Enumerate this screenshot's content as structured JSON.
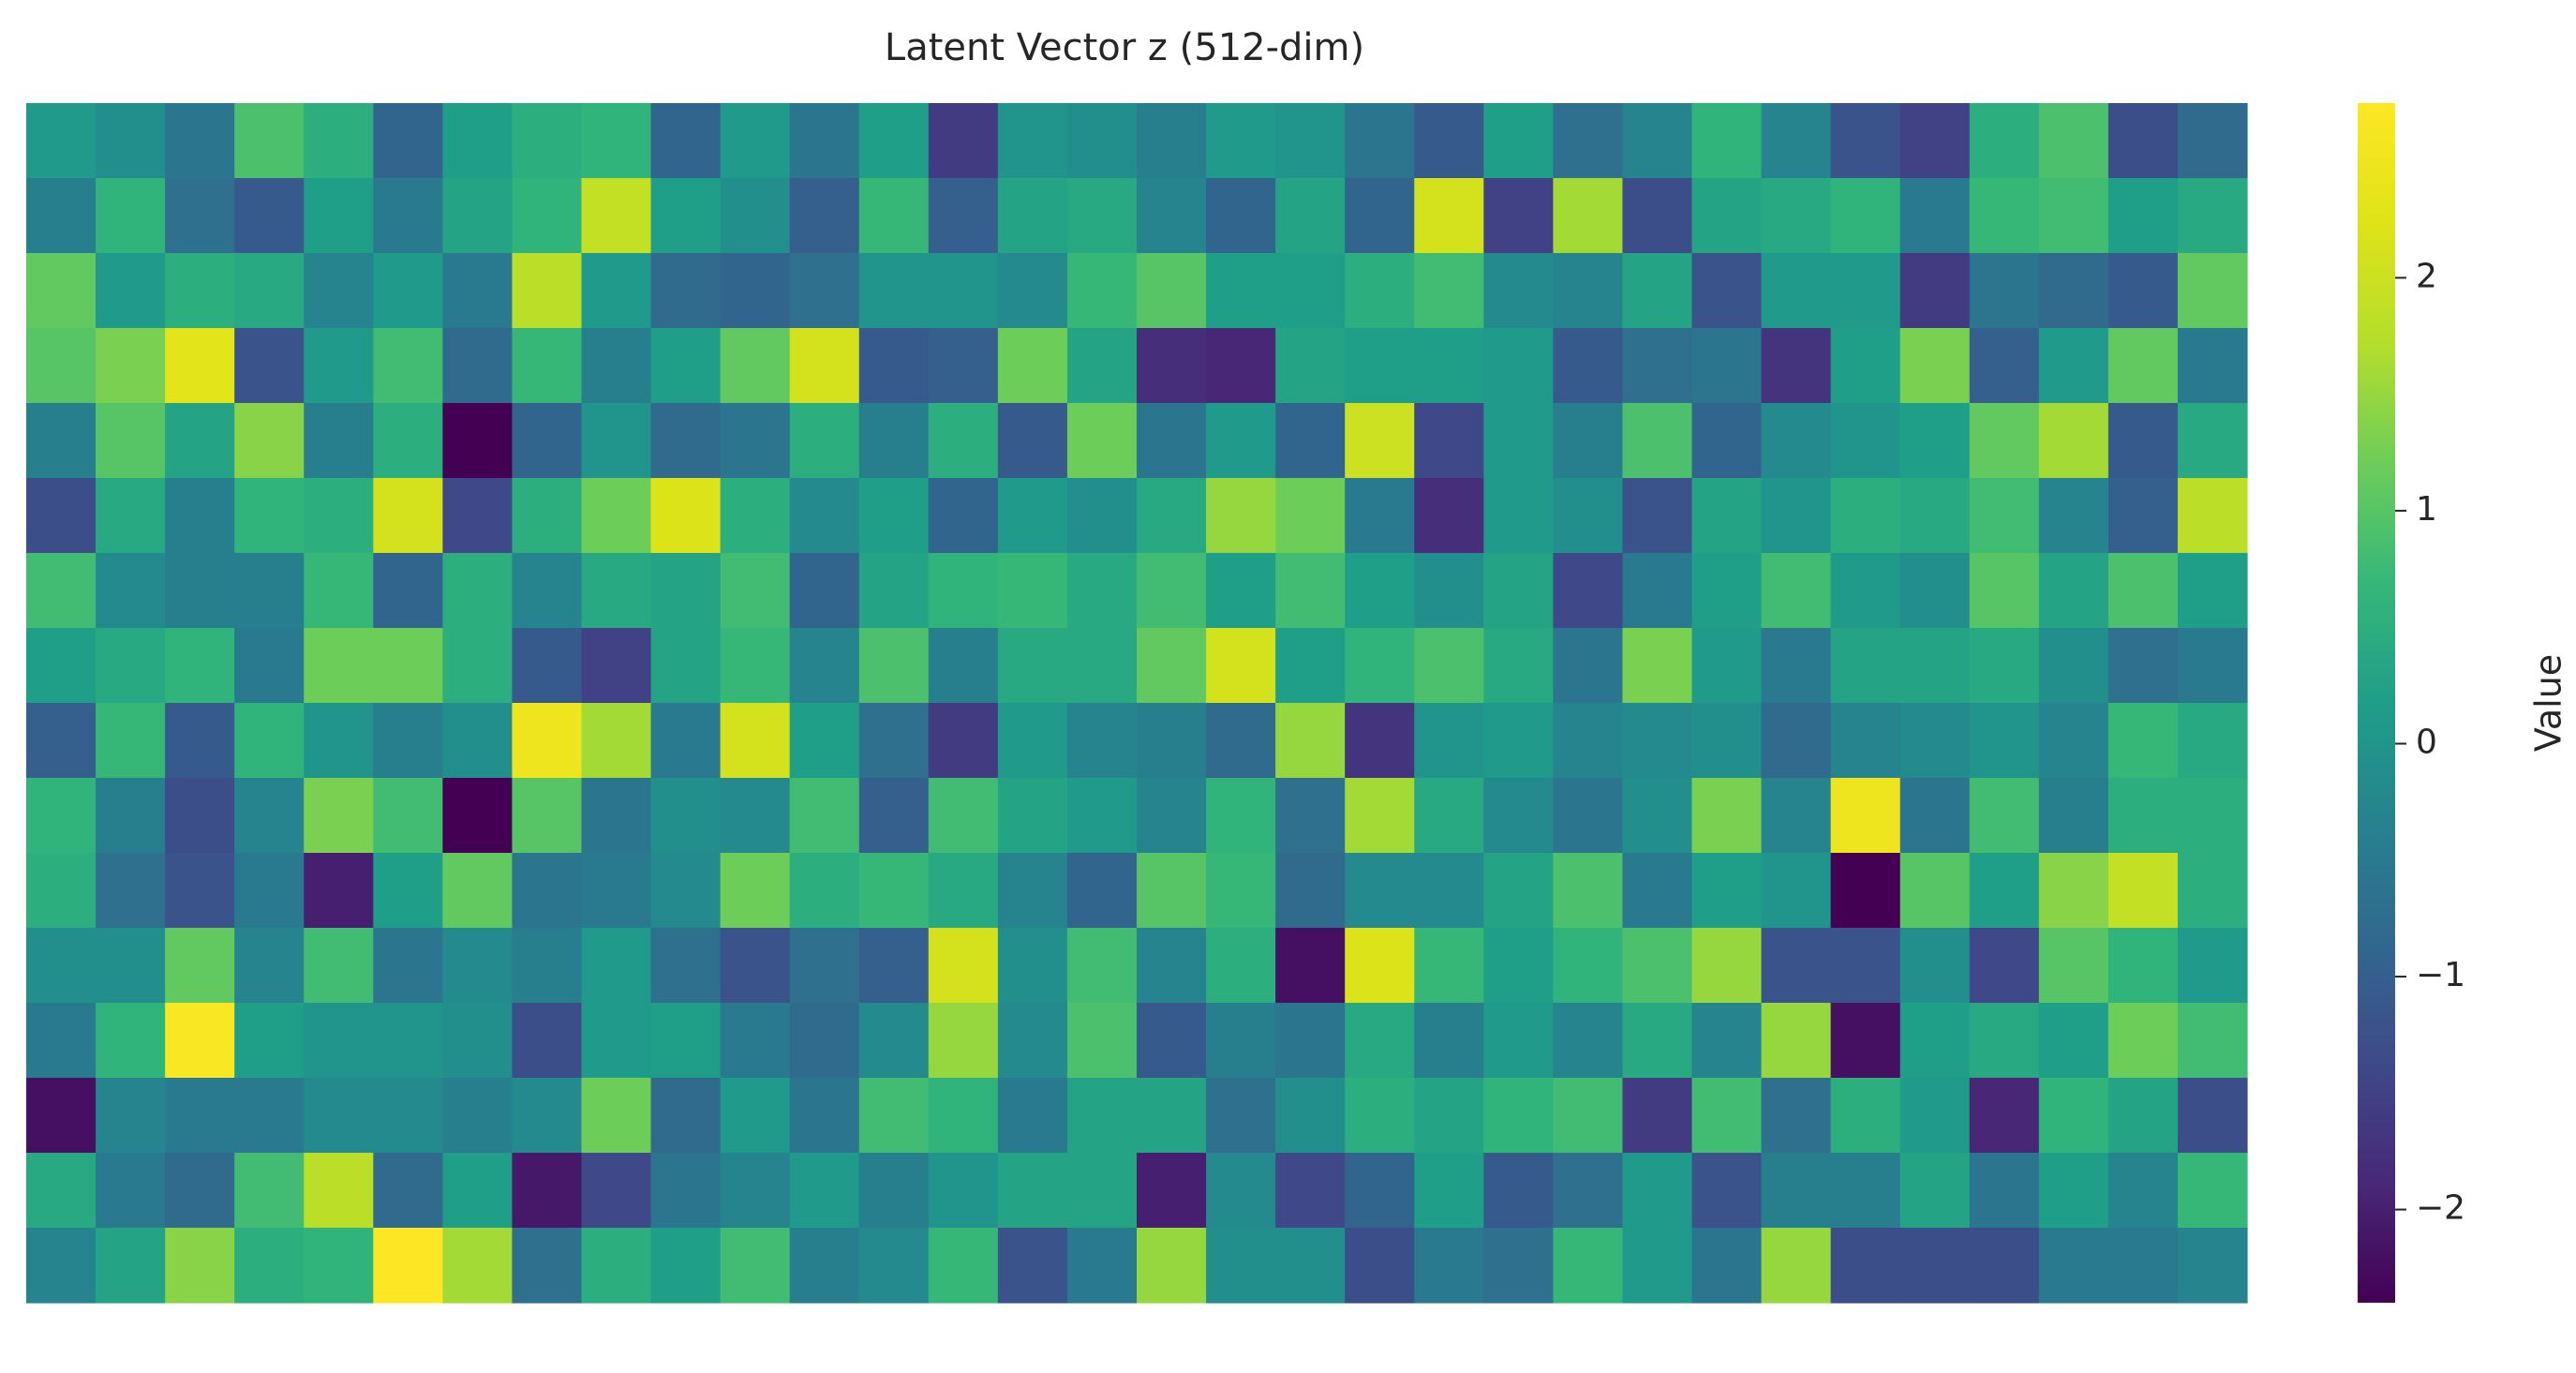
{
  "chart_data": {
    "type": "heatmap",
    "title": "Latent Vector z (512-dim)",
    "colorbar_label": "Value",
    "colormap": "viridis",
    "vmin": -2.4,
    "vmax": 2.75,
    "colorbar_ticks": [
      {
        "value": 2,
        "label": "2"
      },
      {
        "value": 1,
        "label": "1"
      },
      {
        "value": 0,
        "label": "0"
      },
      {
        "value": -1,
        "label": "−1"
      },
      {
        "value": -2,
        "label": "−2"
      }
    ],
    "n_rows": 16,
    "n_cols": 32,
    "values": [
      [
        0.1,
        -0.1,
        -0.6,
        0.9,
        0.5,
        -0.9,
        0.2,
        0.5,
        0.6,
        -0.9,
        0.1,
        -0.6,
        0.2,
        -1.6,
        0.0,
        -0.1,
        -0.4,
        0.1,
        0.0,
        -0.6,
        -1.1,
        0.2,
        -0.7,
        -0.3,
        0.6,
        -0.3,
        -1.2,
        -1.5,
        0.5,
        0.9,
        -1.3,
        -0.8
      ],
      [
        -0.4,
        0.6,
        -0.7,
        -1.1,
        0.2,
        -0.5,
        0.3,
        0.6,
        1.9,
        0.2,
        -0.1,
        -1.0,
        0.7,
        -1.0,
        0.3,
        0.4,
        -0.3,
        -0.9,
        0.3,
        -0.9,
        2.1,
        -1.5,
        1.6,
        -1.3,
        0.3,
        0.4,
        0.6,
        -0.5,
        0.7,
        0.8,
        0.2,
        0.4
      ],
      [
        1.1,
        0.1,
        0.5,
        0.4,
        -0.3,
        0.1,
        -0.5,
        1.8,
        0.1,
        -0.8,
        -0.9,
        -0.7,
        0.0,
        0.0,
        -0.2,
        0.7,
        1.0,
        0.2,
        0.2,
        0.5,
        0.8,
        -0.2,
        -0.3,
        0.3,
        -1.2,
        0.1,
        0.1,
        -1.6,
        -0.6,
        -0.8,
        -1.1,
        1.1
      ],
      [
        1.0,
        1.3,
        2.3,
        -1.2,
        0.1,
        0.8,
        -0.8,
        0.7,
        -0.4,
        0.2,
        1.1,
        2.1,
        -1.1,
        -1.0,
        1.2,
        0.3,
        -1.8,
        -1.9,
        0.3,
        0.2,
        0.2,
        0.1,
        -1.1,
        -0.7,
        -0.6,
        -1.7,
        0.2,
        1.3,
        -1.0,
        0.1,
        1.1,
        -0.5
      ],
      [
        -0.4,
        1.0,
        0.3,
        1.4,
        -0.4,
        0.5,
        -2.4,
        -0.9,
        0.0,
        -0.8,
        -0.6,
        0.5,
        -0.4,
        0.5,
        -1.1,
        1.2,
        -0.6,
        0.1,
        -0.9,
        2.0,
        -1.4,
        0.1,
        -0.4,
        0.9,
        -0.9,
        -0.2,
        0.0,
        0.2,
        1.1,
        1.6,
        -1.1,
        0.4
      ],
      [
        -1.3,
        0.4,
        -0.4,
        0.6,
        0.5,
        2.1,
        -1.4,
        0.5,
        1.2,
        2.2,
        0.5,
        -0.2,
        0.2,
        -0.9,
        0.1,
        -0.1,
        0.4,
        1.5,
        1.2,
        -0.5,
        -1.8,
        0.1,
        -0.1,
        -1.2,
        0.3,
        0.0,
        0.5,
        0.4,
        0.8,
        -0.3,
        -1.0,
        1.8
      ],
      [
        0.8,
        -0.2,
        -0.4,
        -0.4,
        0.7,
        -0.9,
        0.5,
        -0.3,
        0.4,
        0.3,
        0.8,
        -0.9,
        0.3,
        0.6,
        0.7,
        0.4,
        0.8,
        0.2,
        0.8,
        0.2,
        -0.1,
        0.3,
        -1.4,
        -0.5,
        0.2,
        0.8,
        0.1,
        -0.1,
        1.0,
        0.3,
        0.9,
        0.2
      ],
      [
        0.2,
        0.4,
        0.6,
        -0.5,
        1.2,
        1.2,
        0.5,
        -1.1,
        -1.5,
        0.3,
        0.7,
        -0.3,
        0.9,
        -0.4,
        0.4,
        0.4,
        1.1,
        2.1,
        0.2,
        0.6,
        0.9,
        0.4,
        -0.6,
        1.3,
        0.1,
        -0.5,
        0.3,
        0.3,
        0.4,
        -0.1,
        -0.7,
        -0.5
      ],
      [
        -1.0,
        0.7,
        -1.1,
        0.6,
        0.0,
        -0.4,
        -0.1,
        2.5,
        1.6,
        -0.5,
        2.1,
        0.2,
        -0.7,
        -1.6,
        0.1,
        -0.3,
        -0.4,
        -0.8,
        1.5,
        -1.7,
        -0.0,
        0.1,
        -0.3,
        -0.2,
        -0.1,
        -0.8,
        -0.3,
        -0.2,
        0.0,
        -0.3,
        0.7,
        0.4
      ],
      [
        0.6,
        -0.4,
        -1.3,
        -0.3,
        1.3,
        0.8,
        -2.4,
        1.0,
        -0.6,
        -0.1,
        -0.2,
        0.8,
        -1.0,
        0.8,
        0.3,
        0.1,
        -0.3,
        0.6,
        -0.7,
        1.6,
        0.4,
        -0.2,
        -0.6,
        -0.1,
        1.3,
        -0.3,
        2.5,
        -0.6,
        0.8,
        -0.4,
        0.5,
        0.5
      ],
      [
        0.5,
        -0.7,
        -1.2,
        -0.5,
        -2.0,
        0.2,
        1.1,
        -0.6,
        -0.5,
        -0.2,
        1.2,
        0.5,
        0.7,
        0.4,
        -0.3,
        -0.9,
        1.0,
        0.7,
        -0.8,
        -0.2,
        -0.2,
        0.3,
        0.9,
        -0.5,
        0.2,
        0.0,
        -2.4,
        1.0,
        0.2,
        1.4,
        1.9,
        0.5
      ],
      [
        -0.1,
        -0.1,
        1.1,
        -0.3,
        0.8,
        -0.6,
        -0.2,
        -0.4,
        0.1,
        -0.7,
        -1.2,
        -0.7,
        -1.0,
        2.1,
        -0.1,
        0.8,
        -0.3,
        0.5,
        -2.2,
        2.2,
        0.7,
        0.2,
        0.6,
        0.9,
        1.5,
        -1.2,
        -1.2,
        -0.1,
        -1.4,
        1.0,
        0.6,
        0.1
      ],
      [
        -0.5,
        0.6,
        2.7,
        0.2,
        0.0,
        0.0,
        -0.1,
        -1.3,
        0.1,
        0.2,
        -0.5,
        -0.8,
        -0.2,
        1.5,
        -0.2,
        0.9,
        -1.1,
        -0.4,
        -0.6,
        0.4,
        -0.4,
        0.1,
        -0.3,
        0.4,
        -0.3,
        1.5,
        -2.2,
        0.2,
        0.4,
        0.2,
        1.2,
        0.8
      ],
      [
        -2.2,
        -0.3,
        -0.5,
        -0.5,
        -0.2,
        -0.2,
        -0.4,
        -0.2,
        1.2,
        -0.8,
        0.1,
        -0.6,
        0.8,
        0.6,
        -0.5,
        0.3,
        0.3,
        -0.7,
        -0.1,
        0.5,
        0.3,
        0.6,
        0.8,
        -1.6,
        0.8,
        -0.7,
        0.5,
        0.1,
        -1.9,
        0.6,
        0.3,
        -1.3
      ],
      [
        0.4,
        -0.5,
        -0.8,
        0.8,
        1.8,
        -0.8,
        0.2,
        -2.1,
        -1.4,
        -0.6,
        -0.3,
        0.1,
        -0.4,
        0.0,
        0.3,
        0.3,
        -2.0,
        -0.2,
        -1.4,
        -0.9,
        0.2,
        -1.1,
        -0.7,
        0.1,
        -1.2,
        -0.4,
        -0.4,
        0.3,
        -0.6,
        0.2,
        -0.3,
        0.7
      ],
      [
        -0.3,
        0.3,
        1.4,
        0.5,
        0.6,
        2.8,
        1.6,
        -0.7,
        0.5,
        0.2,
        0.8,
        -0.4,
        -0.2,
        0.7,
        -1.2,
        -0.5,
        1.5,
        -0.1,
        -0.1,
        -1.3,
        -0.5,
        -0.7,
        0.7,
        0.1,
        -0.6,
        1.5,
        -1.3,
        -1.3,
        -1.3,
        -0.5,
        -0.5,
        -0.3
      ]
    ]
  }
}
